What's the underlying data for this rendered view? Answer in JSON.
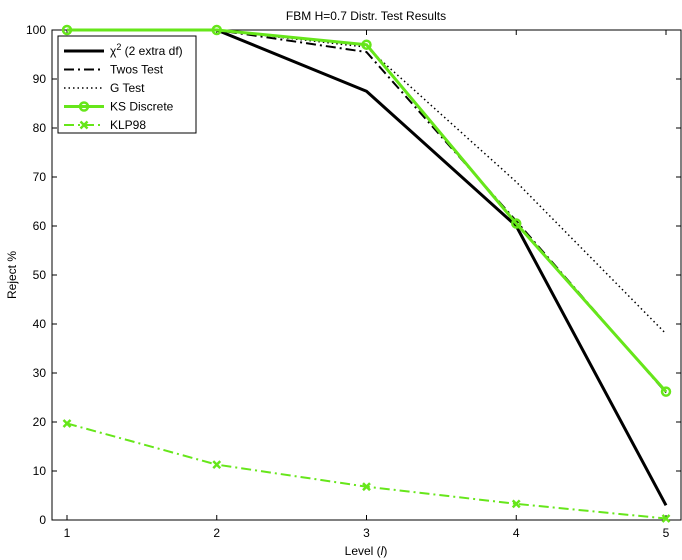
{
  "chart_data": {
    "type": "line",
    "title": "FBM H=0.7 Distr. Test Results",
    "xlabel_prefix": "Level (",
    "xlabel_var": "l",
    "xlabel_suffix": ")",
    "ylabel": "Reject %",
    "x": [
      1,
      2,
      3,
      4,
      5
    ],
    "xlim": [
      1,
      5
    ],
    "ylim": [
      0,
      100
    ],
    "xticks": [
      "1",
      "2",
      "3",
      "4",
      "5"
    ],
    "yticks": [
      "0",
      "10",
      "20",
      "30",
      "40",
      "50",
      "60",
      "70",
      "80",
      "90",
      "100"
    ],
    "grid": false,
    "legend_position": "top-left",
    "series": [
      {
        "name_main": "χ",
        "name_sup": "2",
        "name_rest": " (2 extra df)",
        "values": [
          100,
          100,
          87.5,
          60,
          3
        ],
        "color": "#000000",
        "dash": "",
        "width": 3,
        "marker": "none"
      },
      {
        "name": "Twos Test",
        "values": [
          100,
          100,
          95.5,
          61,
          26
        ],
        "color": "#000000",
        "dash": "dashdot",
        "width": 2,
        "marker": "none"
      },
      {
        "name": "G Test",
        "values": [
          100,
          100,
          96.5,
          69,
          38
        ],
        "color": "#000000",
        "dash": "dotted",
        "width": 1.5,
        "marker": "none"
      },
      {
        "name": "KS Discrete",
        "values": [
          100,
          100,
          97,
          60.5,
          26.2
        ],
        "color": "#66e61a",
        "dash": "",
        "width": 3,
        "marker": "circle"
      },
      {
        "name": "KLP98",
        "values": [
          19.7,
          11.3,
          6.8,
          3.3,
          0.3
        ],
        "color": "#66e61a",
        "dash": "dashdot",
        "width": 2,
        "marker": "x"
      }
    ]
  }
}
